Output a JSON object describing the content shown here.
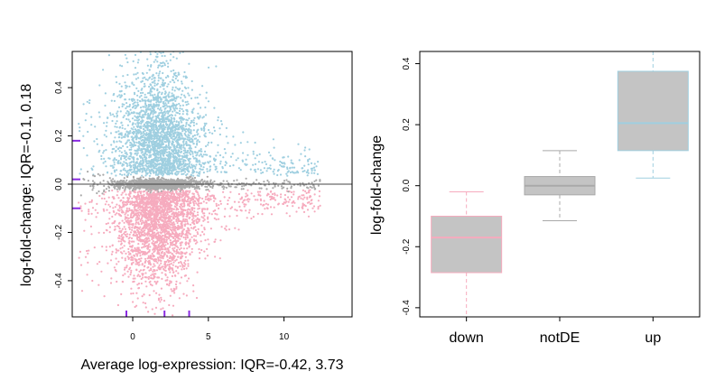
{
  "chart_data": [
    {
      "type": "scatter",
      "title": "",
      "xlabel": "Average log-expression: IQR=-0.42, 3.73",
      "ylabel": "log-fold-change: IQR=-0.1, 0.18",
      "xlim": [
        -4,
        14.5
      ],
      "ylim": [
        -0.55,
        0.55
      ],
      "x_ticks": [
        "0",
        "5",
        "10"
      ],
      "y_ticks": [
        "-0.4",
        "-0.2",
        "0.0",
        "0.2",
        "0.4"
      ],
      "grid": false,
      "reference_line_y": 0,
      "series": [
        {
          "color": "#9fcfe0",
          "group": "up"
        },
        {
          "color": "#a9a9a9",
          "group": "notDE"
        },
        {
          "color": "#f6abbe",
          "group": "down"
        }
      ],
      "rug_marks_x": [
        -0.42,
        2.1,
        3.73
      ],
      "rug_marks_y": [
        -0.1,
        0.02,
        0.18
      ],
      "rug_color": "#8a2be2"
    },
    {
      "type": "boxplot",
      "title": "",
      "xlabel": "",
      "ylabel": "log-fold-change",
      "ylim": [
        -0.43,
        0.44
      ],
      "y_ticks": [
        "-0.4",
        "-0.2",
        "0.0",
        "0.2",
        "0.4"
      ],
      "categories": [
        "down",
        "notDE",
        "up"
      ],
      "boxes": [
        {
          "category": "down",
          "whisker_low": -0.43,
          "q1": -0.285,
          "median": -0.17,
          "q3": -0.1,
          "whisker_high": -0.02,
          "color": "#f6abbe"
        },
        {
          "category": "notDE",
          "whisker_low": -0.115,
          "q1": -0.03,
          "median": 0.0,
          "q3": 0.03,
          "whisker_high": 0.115,
          "color": "#a9a9a9"
        },
        {
          "category": "up",
          "whisker_low": 0.025,
          "q1": 0.115,
          "median": 0.205,
          "q3": 0.375,
          "whisker_high": 0.44,
          "color": "#9fcfe0"
        }
      ]
    }
  ]
}
